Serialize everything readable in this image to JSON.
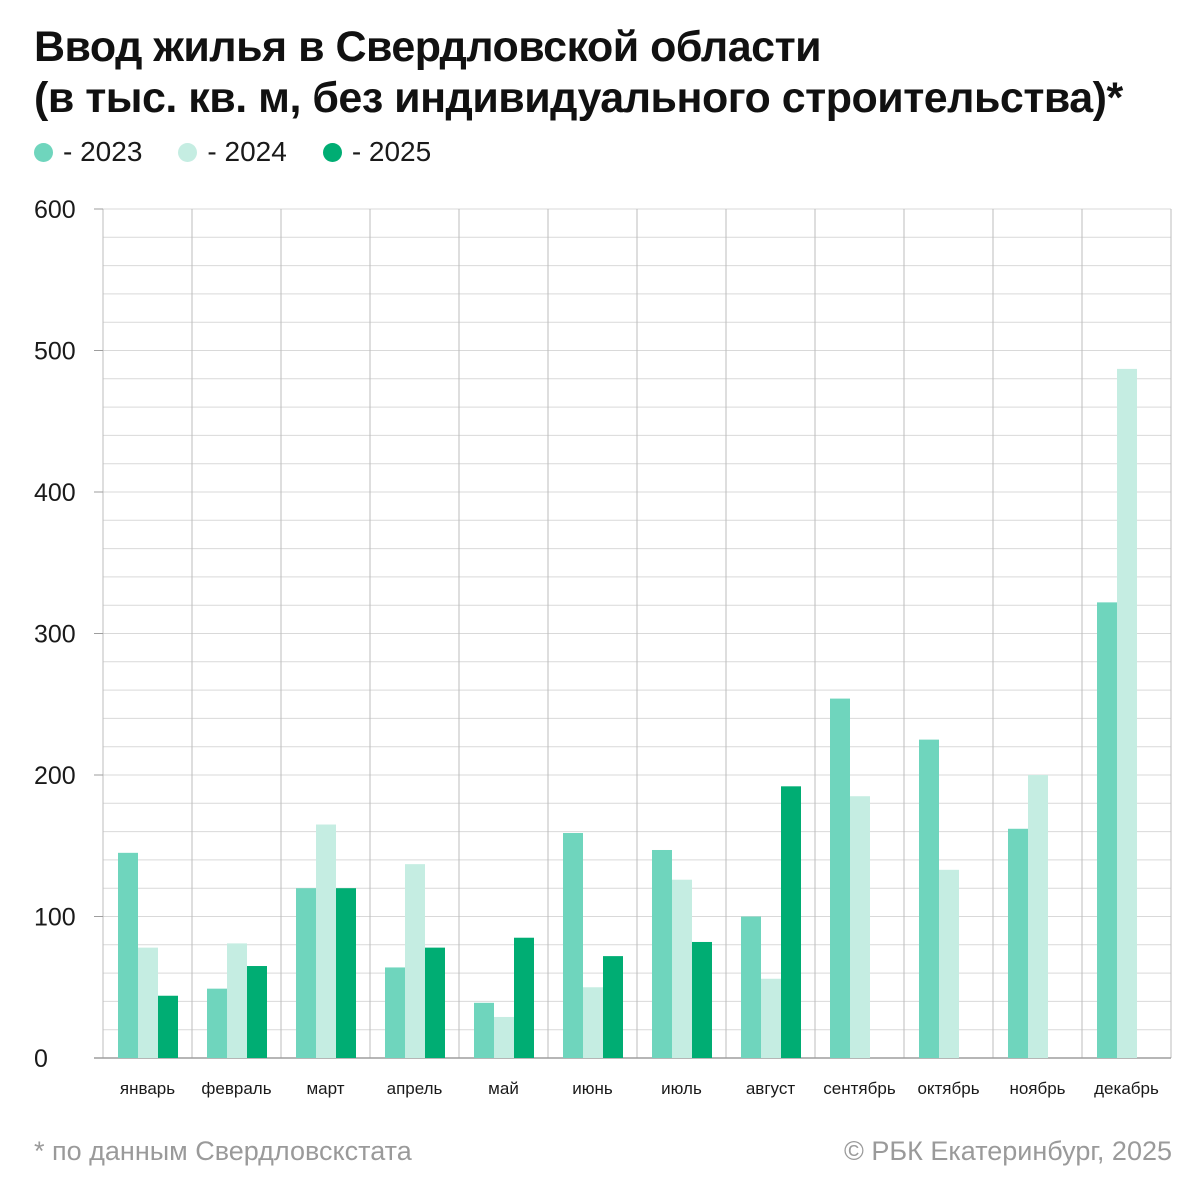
{
  "title_lines": [
    "Ввод жилья в Свердловской области",
    "(в тыс. кв. м, без индивидуального строительства)*"
  ],
  "footnote": "* по данным Свердловскстата",
  "credit": "© РБК Екатеринбург, 2025",
  "colors": {
    "2023": "#6fd5bd",
    "2024": "#c5ede2",
    "2025": "#00ad73",
    "grid": "#d9d9d9",
    "axis": "#bdbdbd"
  },
  "chart_data": {
    "type": "bar",
    "title": "Ввод жилья в Свердловской области (в тыс. кв. м, без индивидуального строительства)*",
    "xlabel": "",
    "ylabel": "",
    "ylim": [
      0,
      600
    ],
    "yticks": [
      0,
      100,
      200,
      300,
      400,
      500,
      600
    ],
    "grid": true,
    "legend_position": "top-left",
    "categories": [
      "январь",
      "февраль",
      "март",
      "апрель",
      "май",
      "июнь",
      "июль",
      "август",
      "сентябрь",
      "октябрь",
      "ноябрь",
      "декабрь"
    ],
    "series": [
      {
        "name": "- 2023",
        "color": "#6fd5bd",
        "values": [
          145,
          49,
          120,
          64,
          39,
          159,
          147,
          100,
          254,
          225,
          162,
          322
        ]
      },
      {
        "name": "- 2024",
        "color": "#c5ede2",
        "values": [
          78,
          81,
          165,
          137,
          29,
          50,
          126,
          56,
          185,
          133,
          200,
          487
        ]
      },
      {
        "name": "- 2025",
        "color": "#00ad73",
        "values": [
          44,
          65,
          120,
          78,
          85,
          72,
          82,
          192,
          null,
          null,
          null,
          null
        ]
      }
    ]
  }
}
